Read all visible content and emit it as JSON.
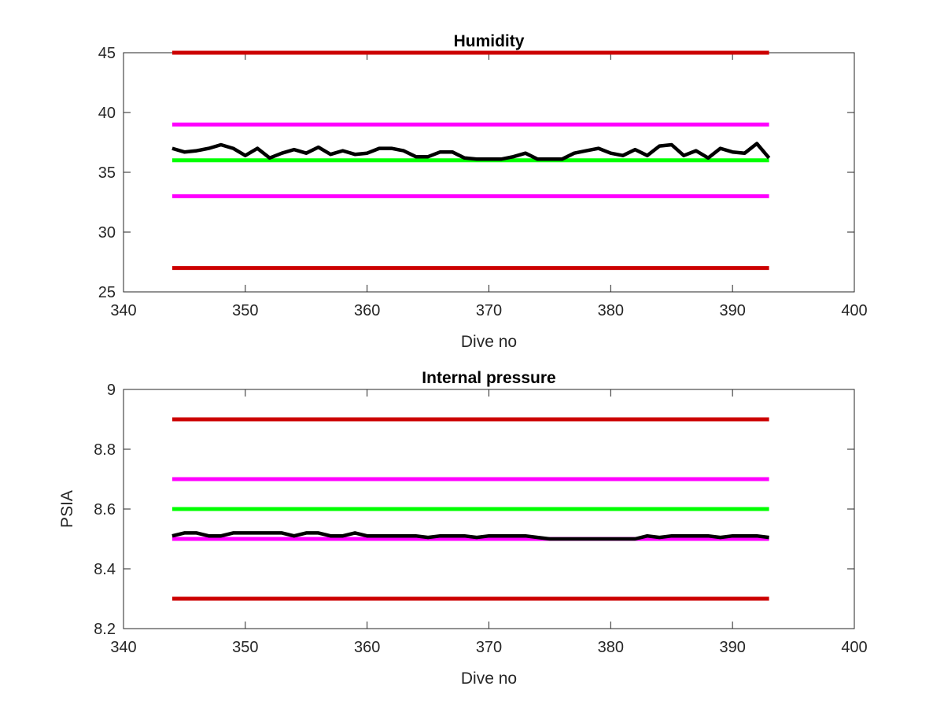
{
  "colors": {
    "limit_red": "#cc0000",
    "limit_magenta": "#ff00ff",
    "target_green": "#00ff00",
    "measured": "#000000",
    "axes": "#262626"
  },
  "chart_data": [
    {
      "type": "line",
      "title": "Humidity",
      "xlabel": "Dive no",
      "ylabel": "",
      "xlim": [
        340,
        400
      ],
      "ylim": [
        25,
        45
      ],
      "xticks": [
        "340",
        "350",
        "360",
        "370",
        "380",
        "390",
        "400"
      ],
      "yticks": [
        "25",
        "30",
        "35",
        "40",
        "45"
      ],
      "grid": false,
      "box": true,
      "reference_lines": [
        {
          "y": 45,
          "x": [
            344,
            393
          ],
          "color": "#cc0000"
        },
        {
          "y": 39,
          "x": [
            344,
            393
          ],
          "color": "#ff00ff"
        },
        {
          "y": 36,
          "x": [
            344,
            393
          ],
          "color": "#00ff00"
        },
        {
          "y": 33,
          "x": [
            344,
            393
          ],
          "color": "#ff00ff"
        },
        {
          "y": 27,
          "x": [
            344,
            393
          ],
          "color": "#cc0000"
        }
      ],
      "series": [
        {
          "color": "#000000",
          "x": [
            344,
            345,
            346,
            347,
            348,
            349,
            350,
            351,
            352,
            353,
            354,
            355,
            356,
            357,
            358,
            359,
            360,
            361,
            362,
            363,
            364,
            365,
            366,
            367,
            368,
            369,
            370,
            371,
            372,
            373,
            374,
            375,
            376,
            377,
            378,
            379,
            380,
            381,
            382,
            383,
            384,
            385,
            386,
            387,
            388,
            389,
            390,
            391,
            392,
            393
          ],
          "values": [
            37.0,
            36.7,
            36.8,
            37.0,
            37.3,
            37.0,
            36.4,
            37.0,
            36.2,
            36.6,
            36.9,
            36.6,
            37.1,
            36.5,
            36.8,
            36.5,
            36.6,
            37.0,
            37.0,
            36.8,
            36.3,
            36.3,
            36.7,
            36.7,
            36.2,
            36.1,
            36.1,
            36.1,
            36.3,
            36.6,
            36.1,
            36.1,
            36.1,
            36.6,
            36.8,
            37.0,
            36.6,
            36.4,
            36.9,
            36.4,
            37.2,
            37.3,
            36.4,
            36.8,
            36.2,
            37.0,
            36.7,
            36.6,
            37.4,
            36.2
          ]
        }
      ]
    },
    {
      "type": "line",
      "title": "Internal pressure",
      "xlabel": "Dive no",
      "ylabel": "PSIA",
      "xlim": [
        340,
        400
      ],
      "ylim": [
        8.2,
        9
      ],
      "xticks": [
        "340",
        "350",
        "360",
        "370",
        "380",
        "390",
        "400"
      ],
      "yticks": [
        "8.2",
        "8.4",
        "8.6",
        "8.8",
        "9"
      ],
      "grid": false,
      "box": true,
      "reference_lines": [
        {
          "y": 8.9,
          "x": [
            344,
            393
          ],
          "color": "#cc0000"
        },
        {
          "y": 8.7,
          "x": [
            344,
            393
          ],
          "color": "#ff00ff"
        },
        {
          "y": 8.6,
          "x": [
            344,
            393
          ],
          "color": "#00ff00"
        },
        {
          "y": 8.5,
          "x": [
            344,
            393
          ],
          "color": "#ff00ff"
        },
        {
          "y": 8.3,
          "x": [
            344,
            393
          ],
          "color": "#cc0000"
        }
      ],
      "series": [
        {
          "color": "#000000",
          "x": [
            344,
            345,
            346,
            347,
            348,
            349,
            350,
            351,
            352,
            353,
            354,
            355,
            356,
            357,
            358,
            359,
            360,
            361,
            362,
            363,
            364,
            365,
            366,
            367,
            368,
            369,
            370,
            371,
            372,
            373,
            374,
            375,
            376,
            377,
            378,
            379,
            380,
            381,
            382,
            383,
            384,
            385,
            386,
            387,
            388,
            389,
            390,
            391,
            392,
            393
          ],
          "values": [
            8.51,
            8.52,
            8.52,
            8.51,
            8.51,
            8.52,
            8.52,
            8.52,
            8.52,
            8.52,
            8.51,
            8.52,
            8.52,
            8.51,
            8.51,
            8.52,
            8.51,
            8.51,
            8.51,
            8.51,
            8.51,
            8.505,
            8.51,
            8.51,
            8.51,
            8.505,
            8.51,
            8.51,
            8.51,
            8.51,
            8.505,
            8.5,
            8.5,
            8.5,
            8.5,
            8.5,
            8.5,
            8.5,
            8.5,
            8.51,
            8.505,
            8.51,
            8.51,
            8.51,
            8.51,
            8.505,
            8.51,
            8.51,
            8.51,
            8.505
          ]
        }
      ]
    }
  ]
}
